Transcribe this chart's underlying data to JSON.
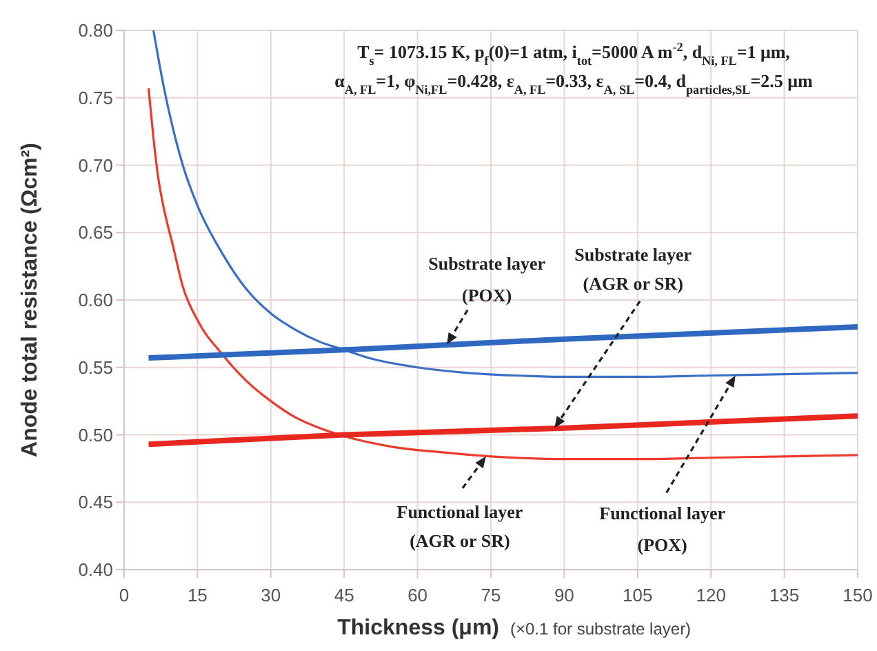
{
  "chart_data": {
    "type": "line",
    "xlabel": "Thickness (μm)",
    "ylabel": "Anode total resistance (Ωcm²)",
    "xlim": [
      0,
      150
    ],
    "xticks": [
      0,
      15,
      30,
      45,
      60,
      75,
      90,
      105,
      120,
      135,
      150
    ],
    "ylim": [
      0.4,
      0.8
    ],
    "yticks": [
      {
        "value": 0.4,
        "label": "0.40"
      },
      {
        "value": 0.45,
        "label": "0.45"
      },
      {
        "value": 0.5,
        "label": "0.50"
      },
      {
        "value": 0.55,
        "label": "0.55"
      },
      {
        "value": 0.6,
        "label": "0.60"
      },
      {
        "value": 0.65,
        "label": "0.65"
      },
      {
        "value": 0.7,
        "label": "0.70"
      },
      {
        "value": 0.75,
        "label": "0.75"
      },
      {
        "value": 0.8,
        "label": "0.80"
      }
    ],
    "grid": true,
    "marker": "none",
    "line_style": "solid",
    "series": [
      {
        "color": "#3b6fc6",
        "x": [
          6,
          8,
          10,
          12,
          15,
          20,
          25,
          30,
          35,
          40,
          45,
          50,
          60,
          70,
          80,
          90,
          105,
          120,
          135,
          150
        ],
        "values": [
          0.8,
          0.76,
          0.727,
          0.7,
          0.67,
          0.635,
          0.608,
          0.59,
          0.578,
          0.569,
          0.563,
          0.557,
          0.55,
          0.546,
          0.544,
          0.543,
          0.543,
          0.544,
          0.545,
          0.546
        ]
      },
      {
        "color": "#ec3a2c",
        "x": [
          5,
          6,
          7,
          8,
          10,
          12,
          15,
          20,
          25,
          30,
          35,
          40,
          45,
          55,
          65,
          75,
          90,
          105,
          120,
          135,
          150
        ],
        "values": [
          0.757,
          0.72,
          0.69,
          0.67,
          0.64,
          0.61,
          0.585,
          0.56,
          0.54,
          0.525,
          0.513,
          0.505,
          0.499,
          0.491,
          0.487,
          0.484,
          0.482,
          0.482,
          0.483,
          0.484,
          0.485
        ]
      },
      {
        "color": "#2f68c0",
        "x": [
          5,
          45,
          90,
          150
        ],
        "values": [
          0.557,
          0.563,
          0.571,
          0.58
        ]
      },
      {
        "color": "#e8281e",
        "x": [
          5,
          45,
          90,
          150
        ],
        "values": [
          0.493,
          0.5,
          0.505,
          0.514
        ]
      }
    ],
    "annotations": [
      "T$_{s}$= 1073.15 K, p$_{f}$(0)=1 atm, i$_{tot}$=5000 A m$^{-2}$, d$_{Ni, FL}$=1 μm,",
      "α$_{A, FL}$=1, φ$_{Ni,FL}$=0.428, ε$_{A, FL}$=0.33, ε$_{A, SL}$=0.4, d$_{particles,SL}$=2.5 μm",
      "(×0.1 for substrate layer)",
      {
        "text": "Substrate layer (POX)",
        "x": 66,
        "y": 0.567
      },
      {
        "text": "Substrate layer (AGR or SR)",
        "x": 88,
        "y": 0.505
      },
      {
        "text": "Functional layer (AGR or SR)",
        "x": 74,
        "y": 0.484
      },
      {
        "text": "Functional layer (POX)",
        "x": 125,
        "y": 0.544
      }
    ]
  }
}
